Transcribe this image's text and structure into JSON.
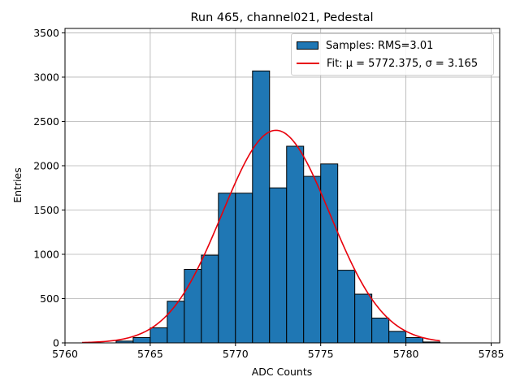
{
  "chart_data": {
    "type": "bar",
    "title": "Run 465, channel021, Pedestal",
    "xlabel": "ADC Counts",
    "ylabel": "Entries",
    "xlim": [
      5760,
      5785.5
    ],
    "ylim": [
      0,
      3550
    ],
    "grid": true,
    "legend_position": "top-right",
    "x_ticks": [
      5760,
      5765,
      5770,
      5775,
      5780,
      5785
    ],
    "y_ticks": [
      0,
      500,
      1000,
      1500,
      2000,
      2500,
      3000,
      3500
    ],
    "bin_width": 1,
    "bins": [
      {
        "left": 5763,
        "value": 20
      },
      {
        "left": 5764,
        "value": 60
      },
      {
        "left": 5765,
        "value": 170
      },
      {
        "left": 5766,
        "value": 470
      },
      {
        "left": 5767,
        "value": 830
      },
      {
        "left": 5768,
        "value": 990
      },
      {
        "left": 5769,
        "value": 1690
      },
      {
        "left": 5770,
        "value": 1690
      },
      {
        "left": 5771,
        "value": 3070
      },
      {
        "left": 5772,
        "value": 1750
      },
      {
        "left": 5773,
        "value": 2220
      },
      {
        "left": 5774,
        "value": 1880
      },
      {
        "left": 5775,
        "value": 2020
      },
      {
        "left": 5776,
        "value": 820
      },
      {
        "left": 5777,
        "value": 550
      },
      {
        "left": 5778,
        "value": 280
      },
      {
        "left": 5779,
        "value": 130
      },
      {
        "left": 5780,
        "value": 60
      },
      {
        "left": 5781,
        "value": 10
      }
    ],
    "fit": {
      "mu": 5772.375,
      "sigma": 3.165,
      "amplitude": 2400,
      "x_range": [
        5761,
        5782
      ]
    },
    "series": [
      {
        "name": "Samples: RMS=3.01",
        "color": "#1f77b4",
        "kind": "histogram"
      },
      {
        "name": "Fit: μ = 5772.375, σ = 3.165",
        "color": "#e8000b",
        "kind": "line"
      }
    ]
  }
}
